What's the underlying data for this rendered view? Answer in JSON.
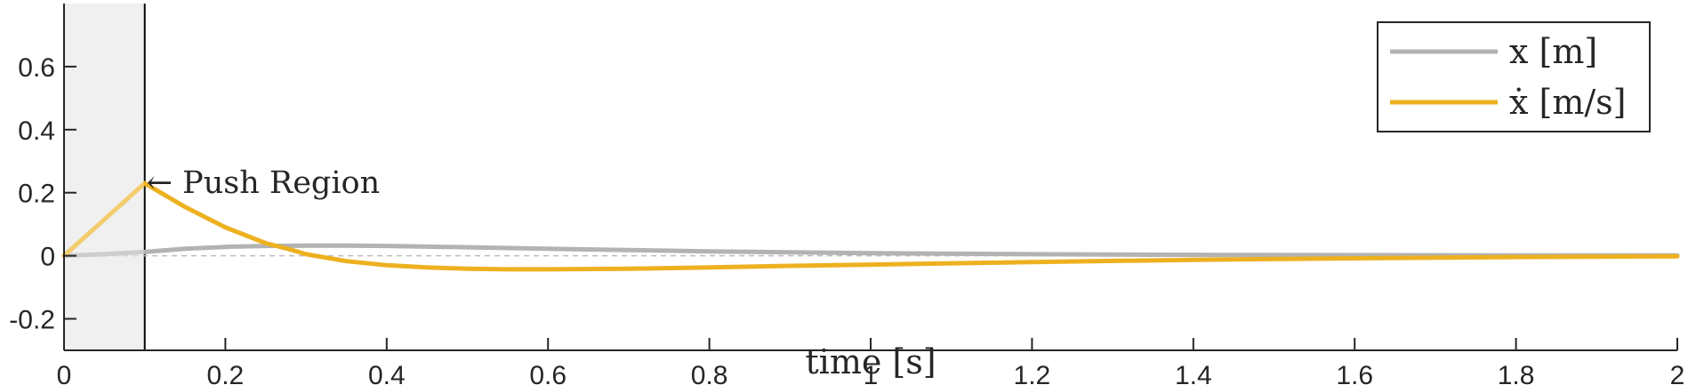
{
  "chart_data": {
    "type": "line",
    "xlabel": "time [s]",
    "ylabel": "",
    "xlim": [
      0,
      2
    ],
    "ylim": [
      -0.3,
      0.8
    ],
    "xticks": [
      0,
      0.2,
      0.4,
      0.6,
      0.8,
      1,
      1.2,
      1.4,
      1.6,
      1.8,
      2
    ],
    "xtick_labels": [
      "0",
      "0.2",
      "0.4",
      "0.6",
      "0.8",
      "1",
      "1.2",
      "1.4",
      "1.6",
      "1.8",
      "2"
    ],
    "yticks": [
      -0.2,
      0,
      0.2,
      0.4,
      0.6
    ],
    "ytick_labels": [
      "-0.2",
      "0",
      "0.2",
      "0.4",
      "0.6"
    ],
    "grid": false,
    "legend_position": "top-right",
    "shaded_region": {
      "x": [
        0,
        0.1
      ],
      "color": "#e8e8e8"
    },
    "zero_line": {
      "y": 0,
      "style": "dashed"
    },
    "annotation": {
      "text": "← Push Region",
      "x": 0.1,
      "y": 0.23
    },
    "series": [
      {
        "name": "x [m]",
        "color": "#b3b3b3",
        "x": [
          0,
          0.05,
          0.1,
          0.15,
          0.2,
          0.25,
          0.3,
          0.35,
          0.4,
          0.5,
          0.6,
          0.7,
          0.8,
          0.9,
          1.0,
          1.2,
          1.4,
          1.6,
          1.8,
          2.0
        ],
        "values": [
          0,
          0.005,
          0.012,
          0.022,
          0.028,
          0.031,
          0.032,
          0.032,
          0.031,
          0.027,
          0.022,
          0.018,
          0.014,
          0.011,
          0.008,
          0.005,
          0.003,
          0.002,
          0.001,
          0.001
        ]
      },
      {
        "name": "ẋ [m/s]",
        "color": "#edb120",
        "x": [
          0,
          0.1,
          0.15,
          0.2,
          0.25,
          0.28,
          0.3,
          0.35,
          0.4,
          0.45,
          0.5,
          0.55,
          0.6,
          0.7,
          0.8,
          0.9,
          1.0,
          1.2,
          1.4,
          1.6,
          1.8,
          2.0
        ],
        "values": [
          0,
          0.23,
          0.155,
          0.09,
          0.04,
          0.02,
          0.005,
          -0.017,
          -0.03,
          -0.037,
          -0.041,
          -0.043,
          -0.043,
          -0.041,
          -0.037,
          -0.032,
          -0.028,
          -0.02,
          -0.013,
          -0.008,
          -0.004,
          -0.002
        ]
      }
    ]
  }
}
